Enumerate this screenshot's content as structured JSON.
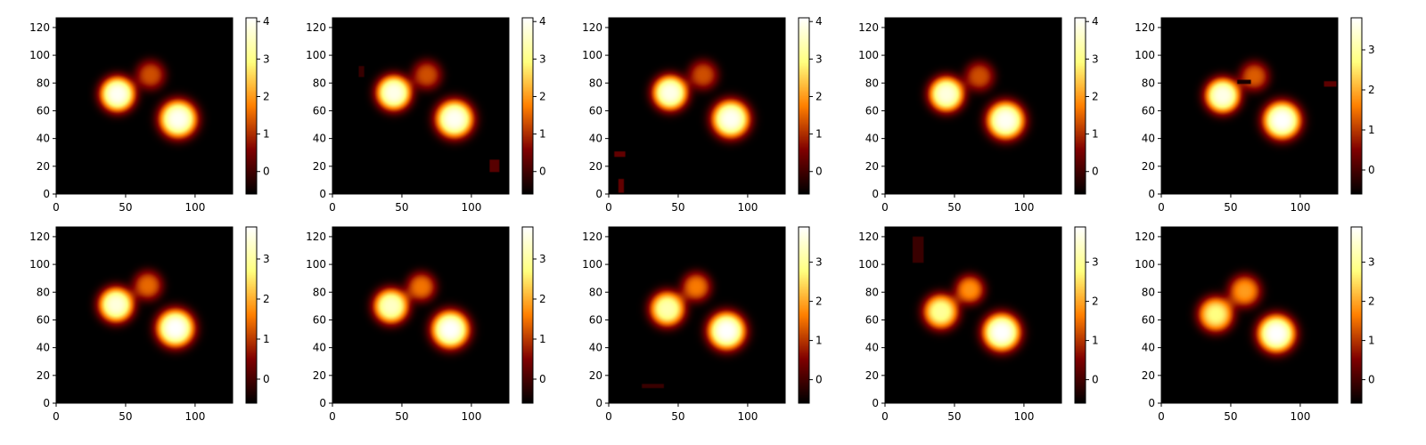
{
  "chart_data": [
    {
      "type": "heatmap",
      "cmap": "afmhot",
      "xlim": [
        0,
        127
      ],
      "ylim": [
        0,
        127
      ],
      "xticks": [
        0,
        50,
        100
      ],
      "yticks": [
        0,
        20,
        40,
        60,
        80,
        100,
        120
      ],
      "color_range": [
        -0.6,
        4.1
      ],
      "colorbar_ticks": [
        0,
        1,
        2,
        3,
        4
      ],
      "blobs": [
        {
          "x": 44,
          "y": 72,
          "radius": 13,
          "peak": 4.0
        },
        {
          "x": 88,
          "y": 54,
          "radius": 14,
          "peak": 4.0
        },
        {
          "x": 68,
          "y": 86,
          "radius": 11,
          "peak": 1.3
        }
      ],
      "artifacts": []
    },
    {
      "type": "heatmap",
      "cmap": "afmhot",
      "xlim": [
        0,
        127
      ],
      "ylim": [
        0,
        127
      ],
      "xticks": [
        0,
        50,
        100
      ],
      "yticks": [
        0,
        20,
        40,
        60,
        80,
        100,
        120
      ],
      "color_range": [
        -0.6,
        4.1
      ],
      "colorbar_ticks": [
        0,
        1,
        2,
        3,
        4
      ],
      "blobs": [
        {
          "x": 44,
          "y": 73,
          "radius": 13,
          "peak": 3.9
        },
        {
          "x": 88,
          "y": 54,
          "radius": 14,
          "peak": 4.0
        },
        {
          "x": 68,
          "y": 86,
          "radius": 11,
          "peak": 1.3
        }
      ],
      "artifacts": [
        {
          "x0": 19,
          "x1": 22,
          "y0": 85,
          "y1": 92,
          "value": -0.1
        },
        {
          "x0": 114,
          "x1": 120,
          "y0": 16,
          "y1": 24,
          "value": 0.2
        }
      ]
    },
    {
      "type": "heatmap",
      "cmap": "afmhot",
      "xlim": [
        0,
        127
      ],
      "ylim": [
        0,
        127
      ],
      "xticks": [
        0,
        50,
        100
      ],
      "yticks": [
        0,
        20,
        40,
        60,
        80,
        100,
        120
      ],
      "color_range": [
        -0.6,
        4.1
      ],
      "colorbar_ticks": [
        0,
        1,
        2,
        3,
        4
      ],
      "blobs": [
        {
          "x": 44,
          "y": 73,
          "radius": 13,
          "peak": 3.9
        },
        {
          "x": 88,
          "y": 54,
          "radius": 14,
          "peak": 4.0
        },
        {
          "x": 68,
          "y": 86,
          "radius": 11,
          "peak": 1.3
        }
      ],
      "artifacts": [
        {
          "x0": 4,
          "x1": 11,
          "y0": 27,
          "y1": 30,
          "value": 0.3
        },
        {
          "x0": 7,
          "x1": 10,
          "y0": 1,
          "y1": 10,
          "value": 0.3
        }
      ]
    },
    {
      "type": "heatmap",
      "cmap": "afmhot",
      "xlim": [
        0,
        127
      ],
      "ylim": [
        0,
        127
      ],
      "xticks": [
        0,
        50,
        100
      ],
      "yticks": [
        0,
        20,
        40,
        60,
        80,
        100,
        120
      ],
      "color_range": [
        -0.6,
        4.1
      ],
      "colorbar_ticks": [
        0,
        1,
        2,
        3,
        4
      ],
      "blobs": [
        {
          "x": 44,
          "y": 72,
          "radius": 13,
          "peak": 3.8
        },
        {
          "x": 87,
          "y": 53,
          "radius": 14,
          "peak": 4.0
        },
        {
          "x": 68,
          "y": 85,
          "radius": 11,
          "peak": 1.3
        }
      ],
      "artifacts": []
    },
    {
      "type": "heatmap",
      "cmap": "afmhot",
      "xlim": [
        0,
        127
      ],
      "ylim": [
        0,
        127
      ],
      "xticks": [
        0,
        50,
        100
      ],
      "yticks": [
        0,
        20,
        40,
        60,
        80,
        100,
        120
      ],
      "color_range": [
        -0.6,
        3.8
      ],
      "colorbar_ticks": [
        0,
        1,
        2,
        3
      ],
      "blobs": [
        {
          "x": 44,
          "y": 71,
          "radius": 13,
          "peak": 3.6
        },
        {
          "x": 87,
          "y": 53,
          "radius": 14,
          "peak": 3.8
        },
        {
          "x": 67,
          "y": 85,
          "radius": 11,
          "peak": 1.3
        }
      ],
      "artifacts": [
        {
          "x0": 55,
          "x1": 64,
          "y0": 80,
          "y1": 82,
          "value": -0.4
        },
        {
          "x0": 118,
          "x1": 126,
          "y0": 78,
          "y1": 81,
          "value": 0.2
        }
      ]
    },
    {
      "type": "heatmap",
      "cmap": "afmhot",
      "xlim": [
        0,
        127
      ],
      "ylim": [
        0,
        127
      ],
      "xticks": [
        0,
        50,
        100
      ],
      "yticks": [
        0,
        20,
        40,
        60,
        80,
        100,
        120
      ],
      "color_range": [
        -0.6,
        3.8
      ],
      "colorbar_ticks": [
        0,
        1,
        2,
        3
      ],
      "blobs": [
        {
          "x": 43,
          "y": 71,
          "radius": 13,
          "peak": 3.5
        },
        {
          "x": 86,
          "y": 54,
          "radius": 14,
          "peak": 3.8
        },
        {
          "x": 66,
          "y": 85,
          "radius": 11,
          "peak": 1.4
        }
      ],
      "artifacts": []
    },
    {
      "type": "heatmap",
      "cmap": "afmhot",
      "xlim": [
        0,
        127
      ],
      "ylim": [
        0,
        127
      ],
      "xticks": [
        0,
        50,
        100
      ],
      "yticks": [
        0,
        20,
        40,
        60,
        80,
        100,
        120
      ],
      "color_range": [
        -0.6,
        3.8
      ],
      "colorbar_ticks": [
        0,
        1,
        2,
        3
      ],
      "blobs": [
        {
          "x": 42,
          "y": 70,
          "radius": 13,
          "peak": 3.3
        },
        {
          "x": 85,
          "y": 53,
          "radius": 14,
          "peak": 3.8
        },
        {
          "x": 64,
          "y": 84,
          "radius": 11,
          "peak": 1.5
        }
      ],
      "artifacts": []
    },
    {
      "type": "heatmap",
      "cmap": "afmhot",
      "xlim": [
        0,
        127
      ],
      "ylim": [
        0,
        127
      ],
      "xticks": [
        0,
        50,
        100
      ],
      "yticks": [
        0,
        20,
        40,
        60,
        80,
        100,
        120
      ],
      "color_range": [
        -0.6,
        3.9
      ],
      "colorbar_ticks": [
        0,
        1,
        2,
        3
      ],
      "blobs": [
        {
          "x": 42,
          "y": 68,
          "radius": 13,
          "peak": 3.2
        },
        {
          "x": 85,
          "y": 52,
          "radius": 14,
          "peak": 3.9
        },
        {
          "x": 63,
          "y": 84,
          "radius": 11,
          "peak": 1.6
        }
      ],
      "artifacts": [
        {
          "x0": 24,
          "x1": 39,
          "y0": 11,
          "y1": 13,
          "value": -0.1
        }
      ]
    },
    {
      "type": "heatmap",
      "cmap": "afmhot",
      "xlim": [
        0,
        127
      ],
      "ylim": [
        0,
        127
      ],
      "xticks": [
        0,
        50,
        100
      ],
      "yticks": [
        0,
        20,
        40,
        60,
        80,
        100,
        120
      ],
      "color_range": [
        -0.6,
        3.9
      ],
      "colorbar_ticks": [
        0,
        1,
        2,
        3
      ],
      "blobs": [
        {
          "x": 40,
          "y": 66,
          "radius": 13,
          "peak": 3.0
        },
        {
          "x": 84,
          "y": 51,
          "radius": 14,
          "peak": 3.9
        },
        {
          "x": 61,
          "y": 82,
          "radius": 11,
          "peak": 1.8
        }
      ],
      "artifacts": [
        {
          "x0": 20,
          "x1": 27,
          "y0": 102,
          "y1": 120,
          "value": -0.1
        }
      ]
    },
    {
      "type": "heatmap",
      "cmap": "afmhot",
      "xlim": [
        0,
        127
      ],
      "ylim": [
        0,
        127
      ],
      "xticks": [
        0,
        50,
        100
      ],
      "yticks": [
        0,
        20,
        40,
        60,
        80,
        100,
        120
      ],
      "color_range": [
        -0.6,
        3.9
      ],
      "colorbar_ticks": [
        0,
        1,
        2,
        3
      ],
      "blobs": [
        {
          "x": 39,
          "y": 64,
          "radius": 13,
          "peak": 2.8
        },
        {
          "x": 83,
          "y": 50,
          "radius": 14,
          "peak": 3.9
        },
        {
          "x": 60,
          "y": 81,
          "radius": 12,
          "peak": 1.9
        }
      ],
      "artifacts": []
    }
  ]
}
